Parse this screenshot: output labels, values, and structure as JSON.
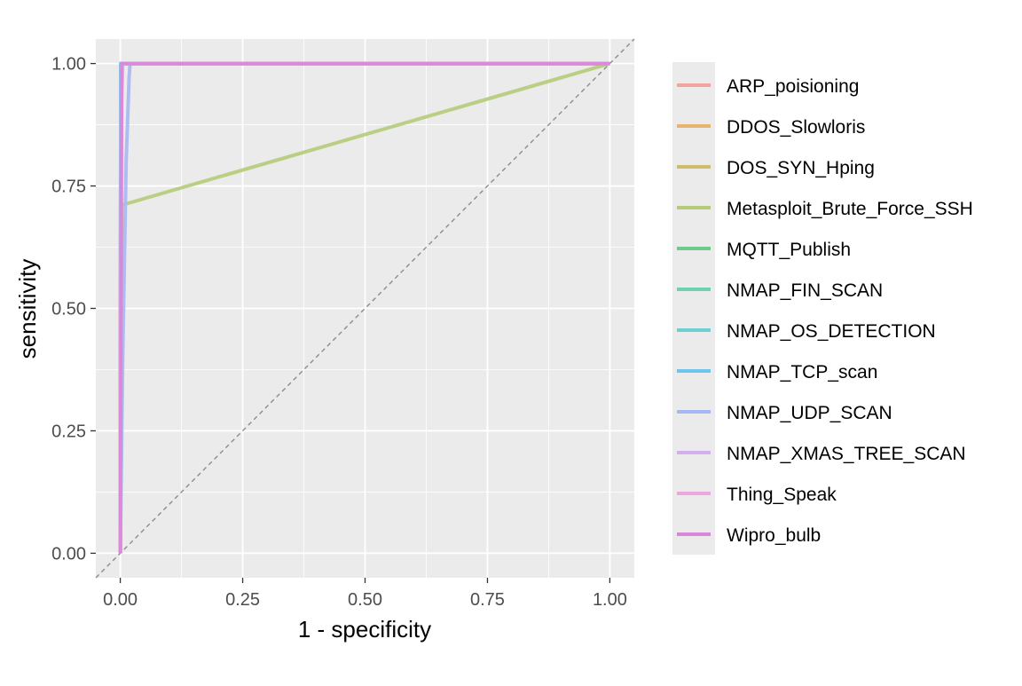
{
  "chart_data": {
    "type": "line",
    "title": "",
    "xlabel": "1 - specificity",
    "ylabel": "sensitivity",
    "xlim": [
      -0.05,
      1.05
    ],
    "ylim": [
      -0.05,
      1.05
    ],
    "x_ticks": [
      "0.00",
      "0.25",
      "0.50",
      "0.75",
      "1.00"
    ],
    "y_ticks": [
      "0.00",
      "0.25",
      "0.50",
      "0.75",
      "1.00"
    ],
    "x_tick_values": [
      0,
      0.25,
      0.5,
      0.75,
      1
    ],
    "y_tick_values": [
      0,
      0.25,
      0.5,
      0.75,
      1
    ],
    "grid": true,
    "reference_line": "dashed diagonal y = x",
    "legend_position": "right",
    "series": [
      {
        "name": "ARP_poisioning",
        "color": "#F2A69B",
        "x": [
          0,
          0.001,
          1
        ],
        "y": [
          0,
          1,
          1
        ]
      },
      {
        "name": "DDOS_Slowloris",
        "color": "#E8B36F",
        "x": [
          0,
          0.002,
          1
        ],
        "y": [
          0,
          1,
          1
        ]
      },
      {
        "name": "DOS_SYN_Hping",
        "color": "#CDBD6A",
        "x": [
          0,
          0.002,
          1
        ],
        "y": [
          0,
          1,
          1
        ]
      },
      {
        "name": "Metasploit_Brute_Force_SSH",
        "color": "#B4CC78",
        "x": [
          0,
          0.003,
          0.01,
          1
        ],
        "y": [
          0,
          0.71,
          0.713,
          1
        ]
      },
      {
        "name": "MQTT_Publish",
        "color": "#6FCB8A",
        "x": [
          0,
          0.001,
          1
        ],
        "y": [
          0,
          1,
          1
        ]
      },
      {
        "name": "NMAP_FIN_SCAN",
        "color": "#6FD1B1",
        "x": [
          0,
          0.001,
          1
        ],
        "y": [
          0,
          1,
          1
        ]
      },
      {
        "name": "NMAP_OS_DETECTION",
        "color": "#6DCFD2",
        "x": [
          0,
          0.001,
          1
        ],
        "y": [
          0,
          1,
          1
        ]
      },
      {
        "name": "NMAP_TCP_scan",
        "color": "#6CC6EC",
        "x": [
          0,
          0.001,
          1
        ],
        "y": [
          0,
          1,
          1
        ]
      },
      {
        "name": "NMAP_UDP_SCAN",
        "color": "#A5B8F2",
        "x": [
          0,
          0.005,
          0.012,
          0.018,
          0.02,
          1
        ],
        "y": [
          0,
          0.4,
          0.8,
          0.97,
          1,
          1
        ]
      },
      {
        "name": "NMAP_XMAS_TREE_SCAN",
        "color": "#D5AEF0",
        "x": [
          0,
          0.002,
          1
        ],
        "y": [
          0,
          1,
          1
        ]
      },
      {
        "name": "Thing_Speak",
        "color": "#EFA5E0",
        "x": [
          0,
          0.002,
          0.005,
          1
        ],
        "y": [
          0,
          0.9,
          1,
          1
        ]
      },
      {
        "name": "Wipro_bulb",
        "color": "#D886D9",
        "x": [
          0,
          0.003,
          1
        ],
        "y": [
          0,
          1,
          1
        ]
      }
    ]
  }
}
